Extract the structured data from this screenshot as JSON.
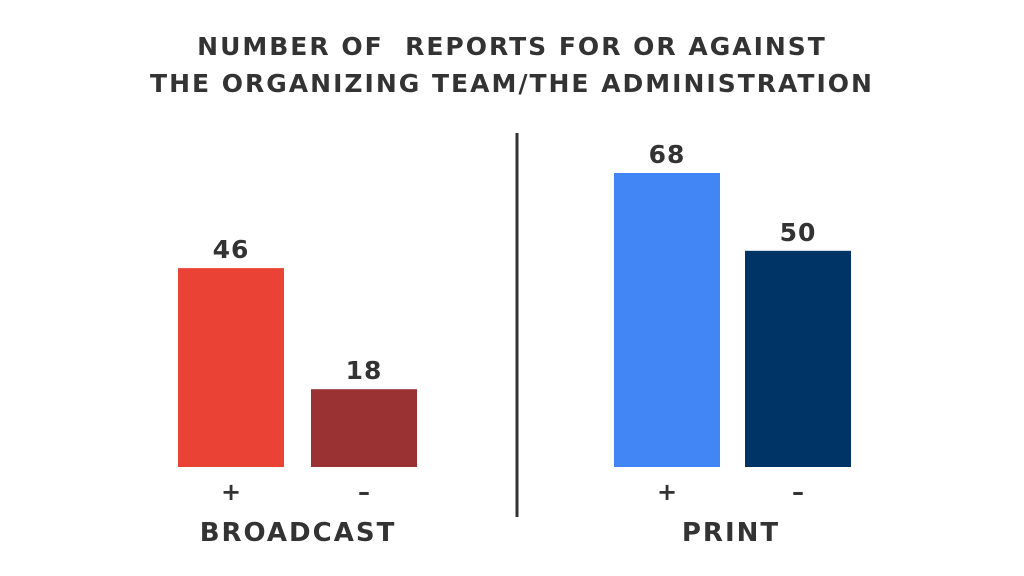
{
  "title": {
    "line1": "NUMBER OF  REPORTS FOR OR AGAINST",
    "line2": "THE ORGANIZING TEAM/THE ADMINISTRATION"
  },
  "chart_data": {
    "type": "bar",
    "title": "NUMBER OF  REPORTS FOR OR AGAINST THE ORGANIZING TEAM/THE ADMINISTRATION",
    "grid": false,
    "groups": [
      {
        "name": "BROADCAST",
        "bars": [
          {
            "label": "+",
            "value": 46,
            "color": "#EA4335"
          },
          {
            "label": "–",
            "value": 18,
            "color": "#9A3233"
          }
        ]
      },
      {
        "name": "PRINT",
        "bars": [
          {
            "label": "+",
            "value": 68,
            "color": "#4285F4"
          },
          {
            "label": "–",
            "value": 50,
            "color": "#003366"
          }
        ]
      }
    ],
    "ylim": [
      0,
      68
    ]
  }
}
